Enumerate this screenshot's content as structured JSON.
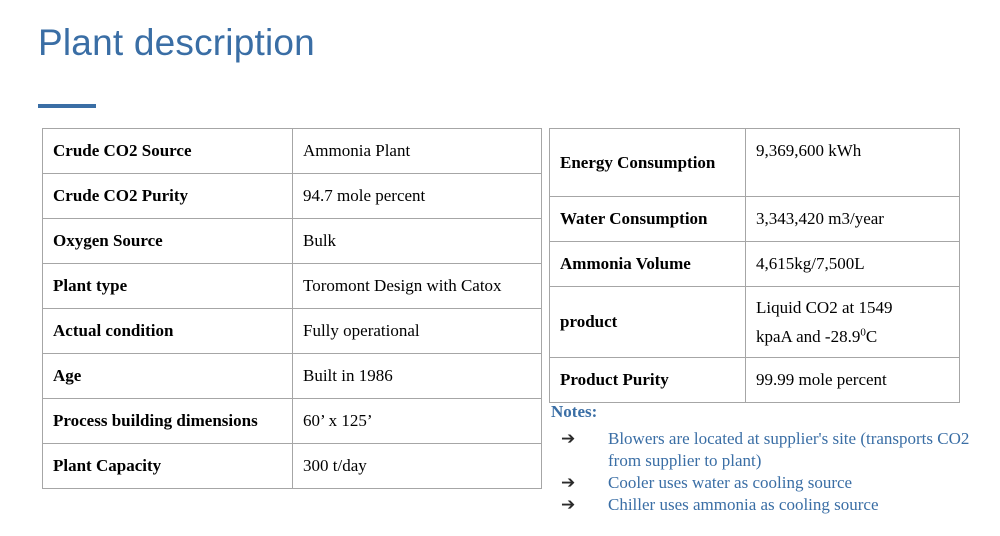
{
  "title": "Plant description",
  "left_table": [
    {
      "label": "Crude CO2 Source",
      "value": "Ammonia Plant"
    },
    {
      "label": "Crude CO2 Purity",
      "value": "94.7 mole percent"
    },
    {
      "label": "Oxygen Source",
      "value": "Bulk"
    },
    {
      "label": "Plant type",
      "value": "Toromont Design with Catox"
    },
    {
      "label": "Actual condition",
      "value": "Fully operational"
    },
    {
      "label": "Age",
      "value": "Built in 1986"
    },
    {
      "label": "Process building dimensions",
      "value": "60’ x 125’"
    },
    {
      "label": "Plant Capacity",
      "value": "300 t/day"
    }
  ],
  "right_table": {
    "energy": {
      "label": "Energy Consumption",
      "value": "9,369,600 kWh"
    },
    "water": {
      "label": "Water Consumption",
      "value": "3,343,420 m3/year"
    },
    "ammonia": {
      "label": "Ammonia Volume",
      "value": "4,615kg/7,500L"
    },
    "product": {
      "label": "product",
      "line1": "Liquid CO2 at 1549",
      "line2_pre": "kpaA and -28.9",
      "line2_sup": "0",
      "line2_post": "C"
    },
    "purity": {
      "label": "Product Purity",
      "value": "99.99 mole percent"
    }
  },
  "notes": {
    "heading": "Notes:",
    "items": [
      "Blowers are located at supplier's site (transports CO2 from supplier to plant)",
      "Cooler uses water as cooling source",
      "Chiller uses ammonia as cooling source"
    ]
  }
}
